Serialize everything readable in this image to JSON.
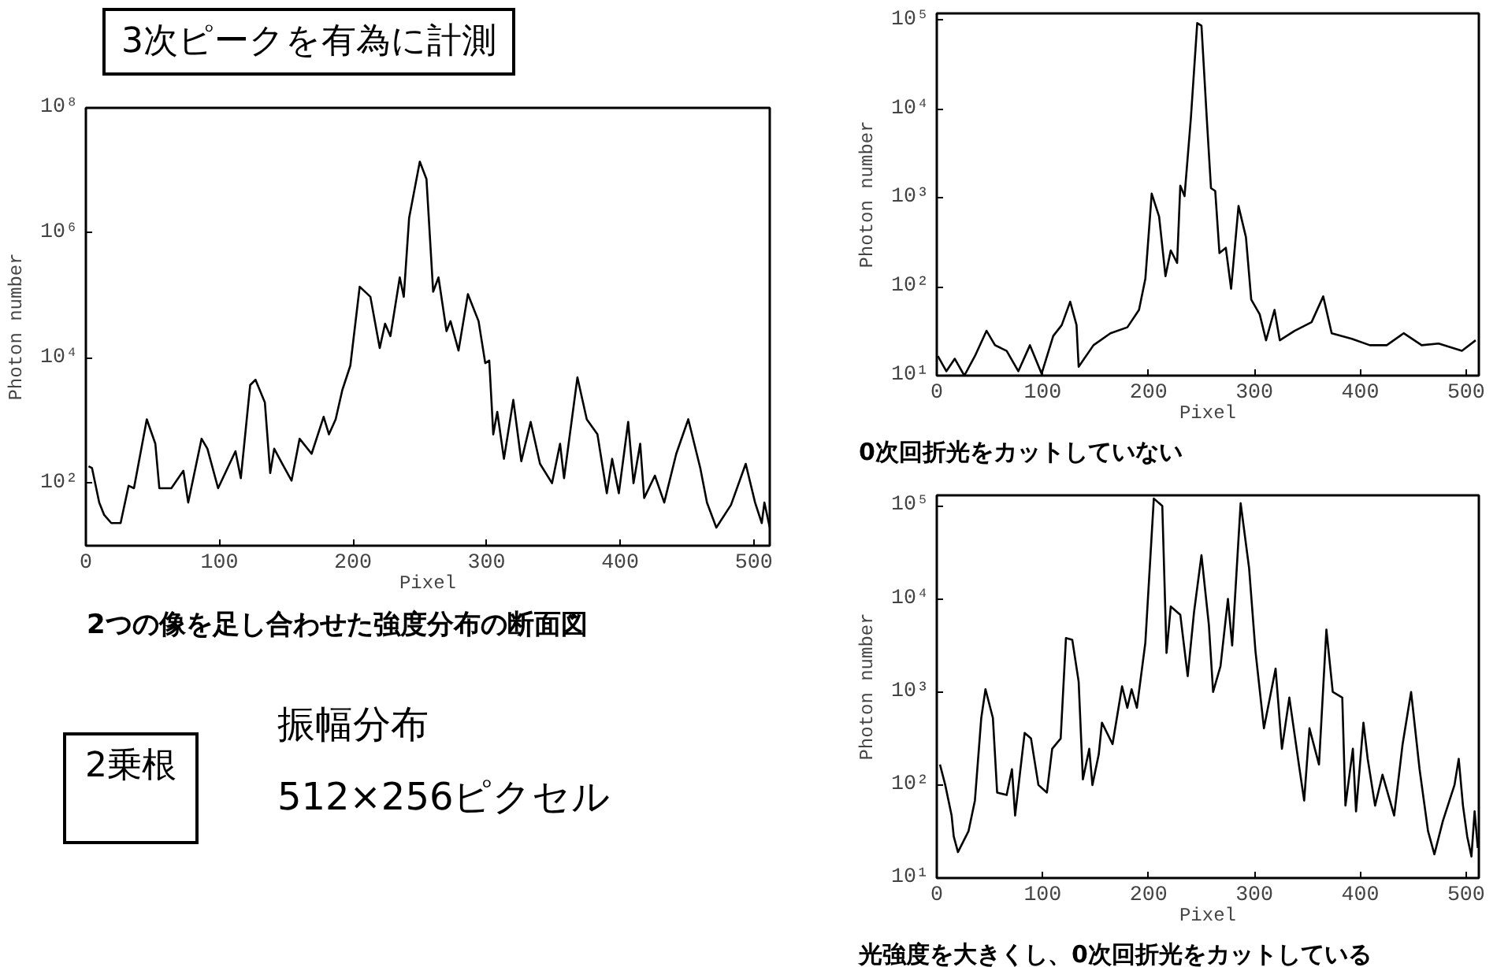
{
  "chart_data": [
    {
      "type": "line",
      "xlabel": "Pixel",
      "ylabel": "Photon number",
      "log": true,
      "xlim": [
        0,
        512
      ],
      "ylim": [
        10,
        100000000
      ],
      "xticks": [
        0,
        100,
        200,
        300,
        400,
        500
      ],
      "yticks": [
        {
          "value": 100,
          "label": "10²"
        },
        {
          "value": 10000,
          "label": "10⁴"
        },
        {
          "value": 1000000,
          "label": "10⁶"
        },
        {
          "value": 100000000,
          "label": "10⁸"
        }
      ],
      "annotations": [
        "3次ピークを有為に計測",
        "2つの像を足し合わせた強度分布の断面図",
        "2乗根",
        "振幅分布",
        "512×256ピクセル"
      ],
      "x": [
        2,
        4.6,
        10,
        13.7,
        19,
        26,
        32,
        36,
        45.6,
        52,
        55,
        64,
        73,
        76.6,
        86.6,
        91,
        99,
        112,
        116,
        123,
        127,
        134,
        138,
        141,
        147,
        154,
        160,
        169,
        178,
        182,
        187,
        192,
        198,
        205,
        213,
        220,
        224,
        228,
        235,
        238,
        242,
        250,
        255,
        260,
        264,
        270,
        273,
        279,
        286,
        294,
        299,
        302,
        305,
        308,
        313,
        320,
        326,
        333,
        340,
        349,
        355,
        358,
        368,
        375,
        383,
        390,
        394,
        399,
        406,
        410,
        415,
        418,
        426,
        433,
        442,
        451,
        460,
        465,
        472,
        483,
        494,
        501,
        506,
        508,
        512
      ],
      "series": [
        {
          "color": "#000000",
          "values": [
            186,
            174,
            49,
            31,
            23,
            23,
            91,
            83,
            1050,
            427,
            83,
            83,
            158,
            49,
            513,
            355,
            83,
            324,
            120,
            3700,
            4500,
            1950,
            145,
            355,
            204,
            110,
            513,
            295,
            1150,
            603,
            1050,
            3090,
            7590,
            138000,
            95500,
            14500,
            35500,
            22400,
            195000,
            95500,
            1740000,
            13800000,
            7240000,
            115000,
            195000,
            26900,
            38900,
            13200,
            105000,
            38900,
            8300,
            9100,
            603,
            1380,
            245,
            2140,
            224,
            955,
            204,
            100,
            427,
            120,
            4900,
            1050,
            603,
            69,
            245,
            69,
            955,
            100,
            427,
            58,
            132,
            49,
            295,
            1050,
            174,
            49,
            19.5,
            45,
            204,
            49,
            23,
            49,
            19.5
          ]
        }
      ]
    },
    {
      "type": "line",
      "xlabel": "Pixel",
      "ylabel": "Photon number",
      "log": true,
      "xlim": [
        0,
        512
      ],
      "ylim": [
        10,
        120000
      ],
      "xticks": [
        0,
        100,
        200,
        300,
        400,
        500
      ],
      "yticks": [
        {
          "value": 10,
          "label": "10¹"
        },
        {
          "value": 100,
          "label": "10²"
        },
        {
          "value": 1000,
          "label": "10³"
        },
        {
          "value": 10000,
          "label": "10⁴"
        },
        {
          "value": 100000,
          "label": "10⁵"
        }
      ],
      "annotations": [
        "0次回折光をカットしていない"
      ],
      "x": [
        1,
        9,
        17,
        26,
        36,
        47,
        55,
        66,
        77,
        88,
        99,
        110,
        118,
        126,
        132,
        134,
        148,
        164,
        180,
        191,
        197,
        203,
        210,
        216,
        221,
        227,
        230,
        234,
        240,
        246,
        250,
        255,
        259,
        263,
        267,
        273,
        278,
        285,
        292,
        297,
        305,
        311,
        319,
        324,
        338,
        354,
        365,
        373,
        392,
        409,
        425,
        441,
        458,
        474,
        496,
        509
      ],
      "series": [
        {
          "color": "#000000",
          "values": [
            16.6,
            11.2,
            15.5,
            10,
            16.6,
            32,
            22,
            19,
            11.2,
            22,
            10.5,
            28,
            37,
            68,
            37,
            12.6,
            22,
            30,
            35,
            55,
            123,
            1120,
            617,
            132,
            257,
            186,
            1380,
            1050,
            7940,
            93300,
            87100,
            7940,
            1290,
            1200,
            240,
            275,
            95,
            813,
            363,
            72,
            49,
            25,
            55,
            25,
            32,
            40,
            78,
            30,
            26,
            22,
            22,
            30,
            22,
            23,
            19,
            25
          ]
        }
      ]
    },
    {
      "type": "line",
      "xlabel": "Pixel",
      "ylabel": "Photon number",
      "log": true,
      "xlim": [
        0,
        512
      ],
      "ylim": [
        10,
        130000
      ],
      "xticks": [
        0,
        100,
        200,
        300,
        400,
        500
      ],
      "yticks": [
        {
          "value": 10,
          "label": "10¹"
        },
        {
          "value": 100,
          "label": "10²"
        },
        {
          "value": 1000,
          "label": "10³"
        },
        {
          "value": 10000,
          "label": "10⁴"
        },
        {
          "value": 100000,
          "label": "10⁵"
        }
      ],
      "annotations": [
        "光強度を大きくし、0次回折光をカットしている"
      ],
      "x": [
        3,
        8,
        14,
        16,
        20,
        30,
        36,
        42,
        46,
        53,
        57,
        66,
        71,
        74,
        79,
        83,
        89,
        96,
        104,
        109,
        117,
        122,
        128,
        134,
        138,
        144,
        147,
        153,
        156,
        166,
        175,
        180,
        184,
        189,
        197,
        205,
        213,
        217,
        221,
        230,
        237,
        243,
        250,
        257,
        261,
        268,
        275,
        279,
        287,
        295,
        301,
        309,
        320,
        326,
        333,
        342,
        347,
        352,
        361,
        368,
        374,
        383,
        386,
        393,
        396,
        403,
        407,
        414,
        421,
        432,
        440,
        448,
        456,
        464,
        470,
        478,
        489,
        493,
        497,
        501,
        505,
        508,
        511
      ],
      "series": [
        {
          "color": "#000000",
          "values": [
            166,
            100,
            47,
            28,
            19,
            32,
            68,
            525,
            1070,
            525,
            83,
            78,
            148,
            47,
            148,
            363,
            316,
            100,
            83,
            245,
            316,
            3800,
            3630,
            1290,
            115,
            245,
            100,
            214,
            468,
            275,
            1150,
            676,
            1070,
            676,
            3390,
            120000,
            100000,
            2630,
            8300,
            6760,
            1480,
            7240,
            29500,
            5250,
            1000,
            1900,
            10000,
            3160,
            107000,
            21400,
            2750,
            407,
            1780,
            245,
            871,
            166,
            68,
            407,
            166,
            4680,
            1000,
            871,
            60,
            245,
            52,
            468,
            191,
            60,
            129,
            47,
            275,
            1000,
            148,
            32,
            18,
            41,
            100,
            191,
            60,
            28,
            17,
            52,
            21
          ]
        }
      ]
    }
  ]
}
